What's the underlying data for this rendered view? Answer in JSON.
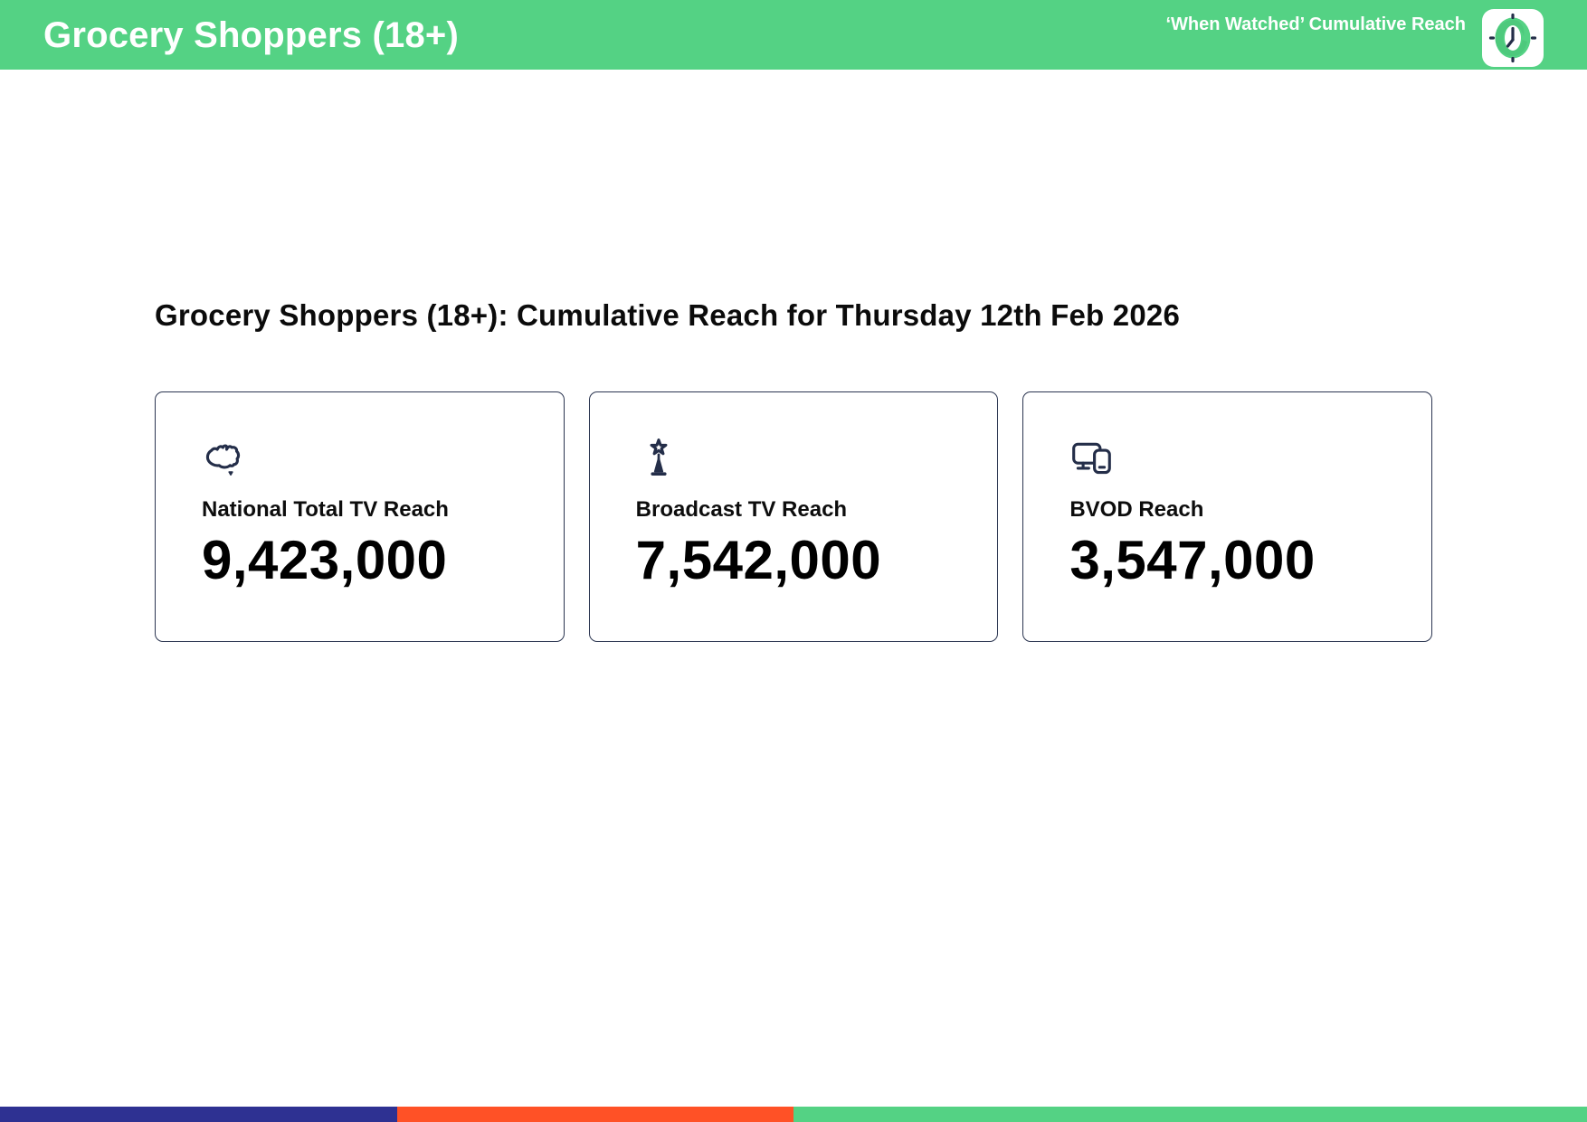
{
  "theme": {
    "brand_green": "#54d284",
    "ink_navy": "#242e49",
    "card_border": "#2b3550",
    "text_black": "#0b0b0b",
    "header_text": "#ffffff"
  },
  "header": {
    "title": "Grocery Shoppers (18+)",
    "subtitle": "‘When Watched’ Cumulative Reach",
    "logo_icon": "clock-icon"
  },
  "main": {
    "heading": "Grocery Shoppers (18+): Cumulative Reach for Thursday 12th Feb 2026",
    "cards": [
      {
        "icon": "australia-map-icon",
        "label": "National Total TV Reach",
        "value": "9,423,000"
      },
      {
        "icon": "broadcast-tower-icon",
        "label": "Broadcast TV Reach",
        "value": "7,542,000"
      },
      {
        "icon": "devices-icon",
        "label": "BVOD Reach",
        "value": "3,547,000"
      }
    ]
  },
  "footer": {
    "segments": [
      {
        "name": "blue",
        "color": "#2e3192",
        "width_pct": 25
      },
      {
        "name": "orange",
        "color": "#ff5126",
        "width_pct": 25
      },
      {
        "name": "green",
        "color": "#54d284",
        "width_pct": 50
      }
    ]
  }
}
